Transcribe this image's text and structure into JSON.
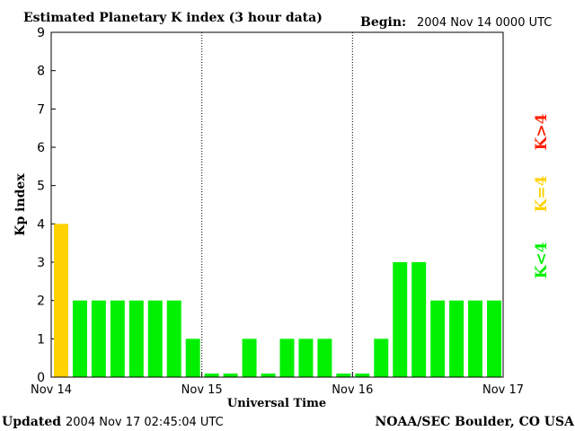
{
  "header": {
    "title": "Estimated Planetary K index (3 hour data)",
    "begin_label": "Begin:",
    "begin_value": "2004 Nov 14 0000 UTC"
  },
  "footer": {
    "updated_label": "Updated",
    "updated_value": "2004 Nov 17 02:45:04 UTC",
    "source": "NOAA/SEC Boulder, CO USA"
  },
  "legend": {
    "high": "K>4",
    "equal": "K=4",
    "low": "K<4"
  },
  "colors": {
    "low": "#00f000",
    "equal": "#ffd200",
    "high": "#ff2000"
  },
  "chart_data": {
    "type": "bar",
    "title": "Estimated Planetary K index (3 hour data)",
    "xlabel": "Universal Time",
    "ylabel": "Kp index",
    "ylim": [
      0,
      9
    ],
    "yticks": [
      "0",
      "1",
      "2",
      "3",
      "4",
      "5",
      "6",
      "7",
      "8",
      "9"
    ],
    "xticks": [
      "Nov 14",
      "Nov 15",
      "Nov 16",
      "Nov 17"
    ],
    "bin_hours": 3,
    "values": [
      4,
      2,
      2,
      2,
      2,
      2,
      2,
      1,
      0,
      0,
      1,
      0,
      1,
      1,
      1,
      0,
      0,
      1,
      3,
      3,
      2,
      2,
      2,
      2
    ],
    "grid": "vertical dotted day separators"
  }
}
